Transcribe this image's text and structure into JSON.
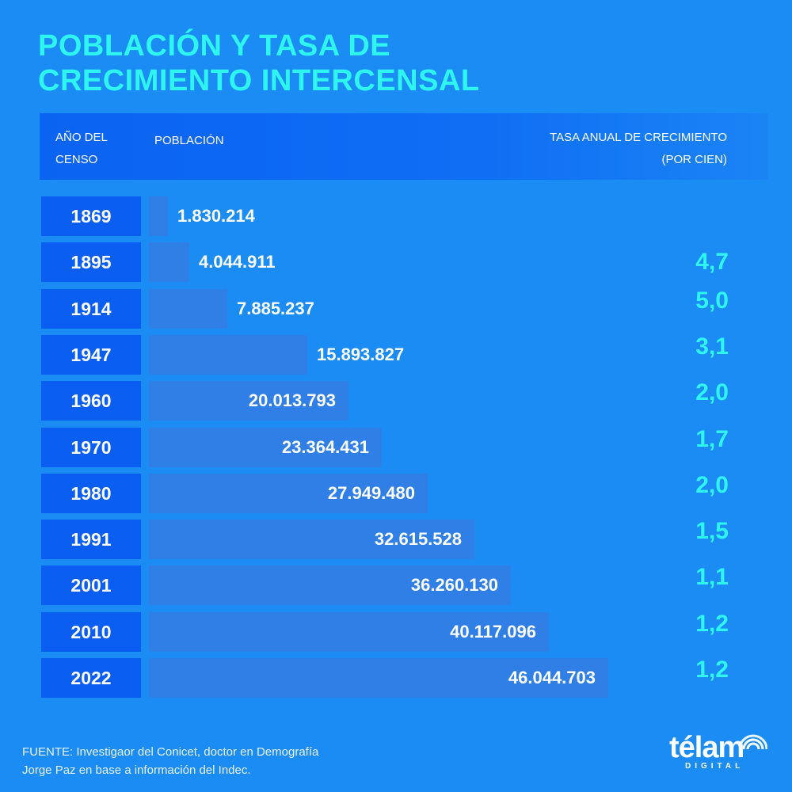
{
  "title": {
    "line1": "POBLACIÓN Y TASA DE",
    "line2": "CRECIMIENTO INTERCENSAL"
  },
  "header": {
    "year_label": "AÑO DEL CENSO",
    "population_label": "POBLACIÓN",
    "rate_label_line1": "TASA ANUAL DE CRECIMIENTO",
    "rate_label_line2": "(POR CIEN)"
  },
  "chart_data": {
    "type": "bar",
    "orientation": "horizontal",
    "categories": [
      "1869",
      "1895",
      "1914",
      "1947",
      "1960",
      "1970",
      "1980",
      "1991",
      "2001",
      "2010",
      "2022"
    ],
    "series": [
      {
        "name": "POBLACIÓN",
        "values": [
          1830214,
          4044911,
          7885237,
          15893827,
          20013793,
          23364431,
          27949480,
          32615528,
          36260130,
          40117096,
          46044703
        ],
        "labels": [
          "1.830.214",
          "4.044.911",
          "7.885.237",
          "15.893.827",
          "20.013.793",
          "23.364.431",
          "27.949.480",
          "32.615.528",
          "36.260.130",
          "40.117.096",
          "46.044.703"
        ]
      }
    ],
    "growth_rates": [
      "",
      "4,7",
      "5,0",
      "3,1",
      "2,0",
      "1,7",
      "2,0",
      "1,5",
      "1,1",
      "1,2",
      "1,2"
    ],
    "xlim": [
      0,
      46044703
    ],
    "grid": false,
    "colors": {
      "background": "#1a8cf3",
      "bar": "#2f7fe6",
      "year_box": "#0b5ef2",
      "accent": "#2ef5f0"
    }
  },
  "source": {
    "line1": "FUENTE: Investigaor del Conicet, doctor en Demografía",
    "line2": "Jorge Paz en base a información del Indec."
  },
  "logo": {
    "word": "télam",
    "sub": "DIGITAL",
    "icon": "signal-waves-icon"
  }
}
